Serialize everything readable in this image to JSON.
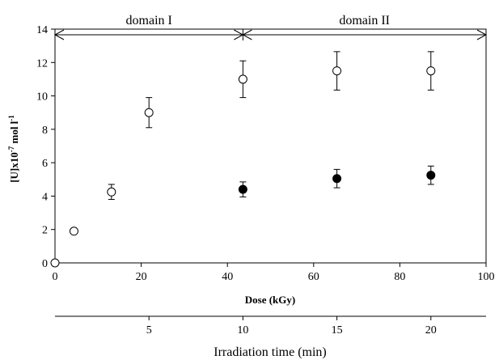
{
  "chart_data": {
    "type": "scatter",
    "xlabel": "Dose (kGy)",
    "ylabel_main": "[U]x10",
    "ylabel_exp": "-7",
    "ylabel_unit": " mol l",
    "ylabel_unit_exp": "-1",
    "xlim": [
      0,
      100
    ],
    "ylim": [
      0,
      14
    ],
    "xticks": [
      0,
      20,
      40,
      60,
      80,
      100
    ],
    "yticks": [
      0,
      2,
      4,
      6,
      8,
      10,
      12,
      14
    ],
    "series": [
      {
        "marker": "open-circle",
        "x": [
          0,
          4.4,
          13.1,
          21.8,
          43.6,
          65.4,
          87.2
        ],
        "y": [
          0,
          1.9,
          4.25,
          9.0,
          11.0,
          11.5,
          11.5
        ],
        "err": [
          0,
          0.15,
          0.45,
          0.9,
          1.1,
          1.15,
          1.15
        ]
      },
      {
        "marker": "filled-circle",
        "x": [
          43.6,
          65.4,
          87.2
        ],
        "y": [
          4.4,
          5.05,
          5.25
        ],
        "err": [
          0.45,
          0.55,
          0.55
        ]
      }
    ],
    "domains": [
      {
        "label": "domain I",
        "from": 0,
        "to": 43.6
      },
      {
        "label": "domain II",
        "from": 43.6,
        "to": 100
      }
    ],
    "secondary_axis": {
      "label": "Irradiation time (min)",
      "ticks": [
        5,
        10,
        15,
        20
      ],
      "dose_per_min": 4.36
    }
  }
}
